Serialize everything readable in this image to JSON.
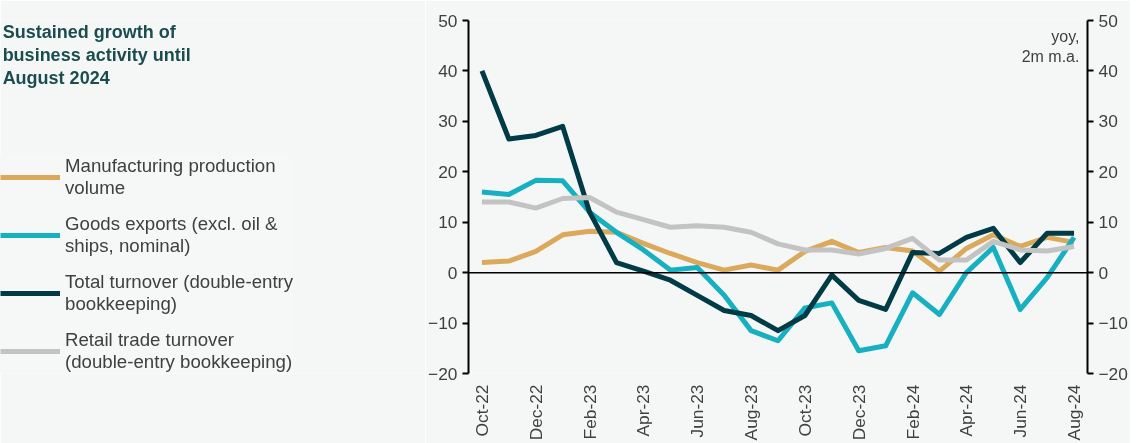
{
  "chart_data": {
    "type": "line",
    "title": "Sustained growth of business activity until August 2024",
    "categories": [
      "Oct-22",
      null,
      "Dec-22",
      null,
      "Feb-23",
      null,
      "Apr-23",
      null,
      "Jun-23",
      null,
      "Aug-23",
      null,
      "Oct-23",
      null,
      "Dec-23",
      null,
      "Feb-24",
      null,
      "Apr-24",
      null,
      "Jun-24",
      null,
      "Aug-24"
    ],
    "series": [
      {
        "name": "Manufacturing production volume",
        "color": "#dba95b",
        "values": [
          2,
          2.3,
          4.2,
          7.5,
          8.2,
          8,
          5.8,
          3.8,
          2,
          0.5,
          1.5,
          0.5,
          4.2,
          6.2,
          4,
          5,
          4.3,
          0.3,
          4.8,
          7.5,
          5.2,
          7,
          6
        ]
      },
      {
        "name": "Goods exports (excl. oil & ships, nominal)",
        "color": "#17b0c0",
        "values": [
          16,
          15.5,
          18.3,
          18.2,
          12,
          8,
          4.5,
          0.5,
          1,
          -4.5,
          -11.5,
          -13.5,
          -7,
          -6,
          -15.5,
          -14.5,
          -4,
          -8.3,
          0,
          5,
          -7.3,
          -1,
          7
        ]
      },
      {
        "name": "Total turnover (double-entry bookkeeping)",
        "color": "#003b46",
        "values": [
          40,
          26.5,
          27.2,
          29,
          12,
          2,
          0.3,
          -1.5,
          -4.5,
          -7.5,
          -8.5,
          -11.5,
          -8.5,
          -0.5,
          -5.5,
          -7.3,
          4,
          3.8,
          7,
          8.8,
          2,
          7.8,
          7.8
        ]
      },
      {
        "name": "Retail trade turnover (double-entry bookkeeping)",
        "color": "#c3c3c3",
        "values": [
          14,
          14,
          12.8,
          14.7,
          14.9,
          12,
          10.5,
          9,
          9.3,
          9,
          8,
          5.7,
          4.5,
          4.5,
          3.7,
          4.8,
          6.8,
          2.5,
          2.5,
          6.2,
          4.5,
          4.3,
          5.2
        ]
      }
    ],
    "ylim": [
      -20,
      50
    ],
    "yticks": [
      -20,
      -10,
      0,
      10,
      20,
      30,
      40,
      50
    ],
    "y2lim": [
      -20,
      50
    ],
    "y2ticks": [
      -20,
      -10,
      0,
      10,
      20,
      30,
      40,
      50
    ],
    "ref_lines": [
      {
        "axis": "y",
        "value": 0,
        "color": "#000000"
      }
    ],
    "annotations": [
      "yoy,\n2m m.a."
    ],
    "legend": "left",
    "grid": false,
    "line_style": "solid",
    "marker": "none"
  }
}
